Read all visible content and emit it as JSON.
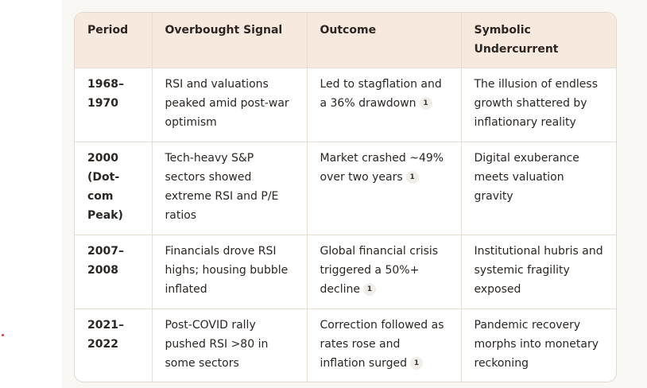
{
  "table": {
    "headers": [
      "Period",
      "Overbought Signal",
      "Outcome",
      "Symbolic Undercurrent"
    ],
    "rows": [
      {
        "period": "1968–1970",
        "signal": "RSI and valuations peaked amid post-war optimism",
        "outcome": "Led to stagflation and a 36% drawdown",
        "citation": "1",
        "undercurrent": "The illusion of endless growth shattered by inflationary reality"
      },
      {
        "period": "2000 (Dot-com Peak)",
        "signal": "Tech-heavy S&P sectors showed extreme RSI and P/E ratios",
        "outcome": "Market crashed ~49% over two years",
        "citation": "1",
        "undercurrent": "Digital exuberance meets valuation gravity"
      },
      {
        "period": "2007–2008",
        "signal": "Financials drove RSI highs; housing bubble inflated",
        "outcome": "Global financial crisis triggered a 50%+ decline",
        "citation": "1",
        "undercurrent": "Institutional hubris and systemic fragility exposed"
      },
      {
        "period": "2021–2022",
        "signal": "Post-COVID rally pushed RSI >80 in some sectors",
        "outcome": "Correction followed as rates rose and inflation surged",
        "citation": "1",
        "undercurrent": "Pandemic recovery morphs into monetary reckoning"
      }
    ]
  },
  "colors": {
    "header_bg": "#f8e9df",
    "border": "#e6ddd3",
    "text": "#2b2622",
    "panel_bg": "#faf8f5"
  }
}
